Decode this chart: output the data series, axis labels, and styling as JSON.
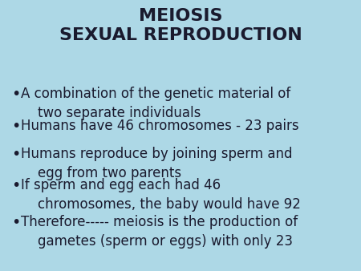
{
  "title_line1": "MEIOSIS",
  "title_line2": "SEXUAL REPRODUCTION",
  "background_color": "#add8e6",
  "text_color": "#1a1a2e",
  "title_color": "#1a1a2e",
  "bullet_points": [
    "A combination of the genetic material of\n    two separate individuals",
    "Humans have 46 chromosomes - 23 pairs",
    "Humans reproduce by joining sperm and\n    egg from two parents",
    "If sperm and egg each had 46\n    chromosomes, the baby would have 92",
    "Therefore----- meiosis is the production of\n    gametes (sperm or eggs) with only 23"
  ],
  "title_fontsize": 16,
  "bullet_fontsize": 12,
  "figsize": [
    4.5,
    3.38
  ],
  "dpi": 100
}
